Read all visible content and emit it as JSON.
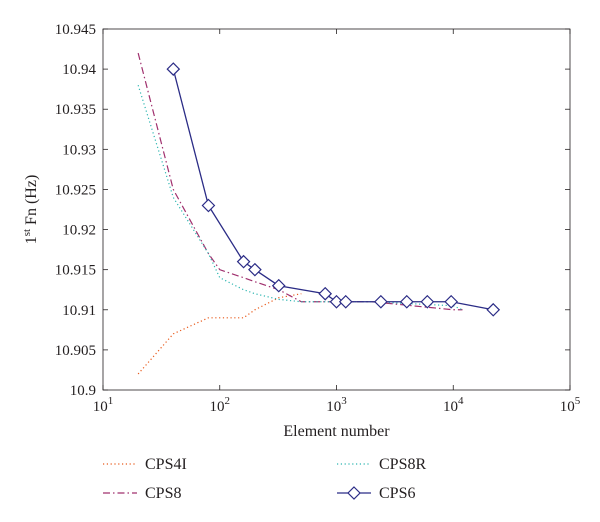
{
  "chart_data": {
    "type": "line",
    "xscale": "log",
    "xlim": [
      10,
      100000
    ],
    "ylim": [
      10.9,
      10.945
    ],
    "grid": false,
    "legend_placement": "bottom",
    "xlabel": "Element number",
    "ylabel": {
      "prefix": "1",
      "superscript": "st",
      "suffix": " Fn (Hz)"
    },
    "x_tick_values": [
      10,
      100,
      1000,
      10000,
      100000
    ],
    "x_ticks": [
      {
        "base": "10",
        "exp": "1"
      },
      {
        "base": "10",
        "exp": "2"
      },
      {
        "base": "10",
        "exp": "3"
      },
      {
        "base": "10",
        "exp": "4"
      },
      {
        "base": "10",
        "exp": "5"
      }
    ],
    "y_tick_values": [
      10.9,
      10.905,
      10.91,
      10.915,
      10.92,
      10.925,
      10.93,
      10.935,
      10.94,
      10.945
    ],
    "y_ticks": [
      "10.9",
      "10.905",
      "10.91",
      "10.915",
      "10.92",
      "10.925",
      "10.93",
      "10.935",
      "10.94",
      "10.945"
    ],
    "series": [
      {
        "name": "CPS4I",
        "color": "#e8591a",
        "style": "dotted",
        "marker": "none",
        "x": [
          20,
          40,
          80,
          100,
          160,
          200,
          320,
          500
        ],
        "y": [
          10.902,
          10.907,
          10.909,
          10.909,
          10.909,
          10.91,
          10.9115,
          10.912
        ]
      },
      {
        "name": "CPS8",
        "color": "#a0306e",
        "style": "dashdot",
        "marker": "none",
        "x": [
          20,
          40,
          80,
          100,
          160,
          200,
          320,
          500,
          1000,
          2000,
          10000,
          12000
        ],
        "y": [
          10.942,
          10.925,
          10.917,
          10.915,
          10.914,
          10.9135,
          10.9125,
          10.911,
          10.911,
          10.911,
          10.91,
          10.91
        ]
      },
      {
        "name": "CPS8R",
        "color": "#2bb5b0",
        "style": "dotted",
        "marker": "none",
        "x": [
          20,
          40,
          80,
          100,
          160,
          200,
          320,
          500,
          1000,
          2000,
          10000,
          12000
        ],
        "y": [
          10.938,
          10.924,
          10.917,
          10.914,
          10.9125,
          10.912,
          10.9113,
          10.911,
          10.911,
          10.911,
          10.9105,
          10.91
        ]
      },
      {
        "name": "CPS6",
        "color": "#2b2c86",
        "style": "solid",
        "marker": "diamond",
        "x": [
          40,
          80,
          160,
          200,
          320,
          800,
          1000,
          1200,
          2400,
          4000,
          6000,
          9600,
          22000
        ],
        "y": [
          10.94,
          10.923,
          10.916,
          10.915,
          10.913,
          10.912,
          10.911,
          10.911,
          10.911,
          10.911,
          10.911,
          10.911,
          10.91
        ]
      }
    ]
  }
}
